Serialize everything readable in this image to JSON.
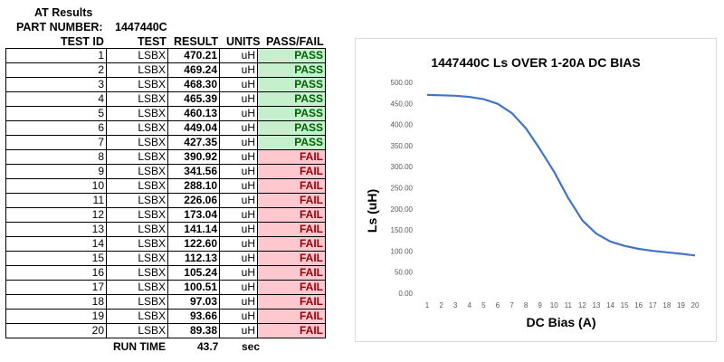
{
  "sheet": {
    "title": "AT Results",
    "part_label": "PART NUMBER:",
    "part_number": "1447440C",
    "headers": {
      "test_id": "TEST ID",
      "test": "TEST",
      "result": "RESULT",
      "units": "UNITS",
      "pass_fail": "PASS/FAIL"
    },
    "rows": [
      {
        "id": "1",
        "test": "LSBX",
        "result": "470.21",
        "units": "uH",
        "status": "PASS"
      },
      {
        "id": "2",
        "test": "LSBX",
        "result": "469.24",
        "units": "uH",
        "status": "PASS"
      },
      {
        "id": "3",
        "test": "LSBX",
        "result": "468.30",
        "units": "uH",
        "status": "PASS"
      },
      {
        "id": "4",
        "test": "LSBX",
        "result": "465.39",
        "units": "uH",
        "status": "PASS"
      },
      {
        "id": "5",
        "test": "LSBX",
        "result": "460.13",
        "units": "uH",
        "status": "PASS"
      },
      {
        "id": "6",
        "test": "LSBX",
        "result": "449.04",
        "units": "uH",
        "status": "PASS"
      },
      {
        "id": "7",
        "test": "LSBX",
        "result": "427.35",
        "units": "uH",
        "status": "PASS"
      },
      {
        "id": "8",
        "test": "LSBX",
        "result": "390.92",
        "units": "uH",
        "status": "FAIL"
      },
      {
        "id": "9",
        "test": "LSBX",
        "result": "341.56",
        "units": "uH",
        "status": "FAIL"
      },
      {
        "id": "10",
        "test": "LSBX",
        "result": "288.10",
        "units": "uH",
        "status": "FAIL"
      },
      {
        "id": "11",
        "test": "LSBX",
        "result": "226.06",
        "units": "uH",
        "status": "FAIL"
      },
      {
        "id": "12",
        "test": "LSBX",
        "result": "173.04",
        "units": "uH",
        "status": "FAIL"
      },
      {
        "id": "13",
        "test": "LSBX",
        "result": "141.14",
        "units": "uH",
        "status": "FAIL"
      },
      {
        "id": "14",
        "test": "LSBX",
        "result": "122.60",
        "units": "uH",
        "status": "FAIL"
      },
      {
        "id": "15",
        "test": "LSBX",
        "result": "112.13",
        "units": "uH",
        "status": "FAIL"
      },
      {
        "id": "16",
        "test": "LSBX",
        "result": "105.24",
        "units": "uH",
        "status": "FAIL"
      },
      {
        "id": "17",
        "test": "LSBX",
        "result": "100.51",
        "units": "uH",
        "status": "FAIL"
      },
      {
        "id": "18",
        "test": "LSBX",
        "result": "97.03",
        "units": "uH",
        "status": "FAIL"
      },
      {
        "id": "19",
        "test": "LSBX",
        "result": "93.66",
        "units": "uH",
        "status": "FAIL"
      },
      {
        "id": "20",
        "test": "LSBX",
        "result": "89.38",
        "units": "uH",
        "status": "FAIL"
      }
    ],
    "run_time_label": "RUN TIME",
    "run_time_value": "43.7",
    "run_time_unit": "sec",
    "colors": {
      "pass_fill": "#c6efce",
      "pass_text": "#006100",
      "fail_fill": "#ffc7ce",
      "fail_text": "#9c0006"
    }
  },
  "chart_data": {
    "type": "line",
    "title": "1447440C Ls OVER 1-20A DC BIAS",
    "xlabel": "DC Bias (A)",
    "ylabel": "Ls (uH)",
    "x": [
      1,
      2,
      3,
      4,
      5,
      6,
      7,
      8,
      9,
      10,
      11,
      12,
      13,
      14,
      15,
      16,
      17,
      18,
      19,
      20
    ],
    "series": [
      {
        "values": [
          470.21,
          469.24,
          468.3,
          465.39,
          460.13,
          449.04,
          427.35,
          390.92,
          341.56,
          288.1,
          226.06,
          173.04,
          141.14,
          122.6,
          112.13,
          105.24,
          100.51,
          97.03,
          93.66,
          89.38
        ],
        "color": "#4472c4"
      }
    ],
    "x_ticks": [
      "1",
      "2",
      "3",
      "4",
      "5",
      "6",
      "7",
      "8",
      "9",
      "10",
      "11",
      "12",
      "13",
      "14",
      "15",
      "16",
      "17",
      "18",
      "19",
      "20"
    ],
    "y_ticks": [
      "0.00",
      "50.00",
      "100.00",
      "150.00",
      "200.00",
      "250.00",
      "300.00",
      "350.00",
      "400.00",
      "450.00",
      "500.00"
    ],
    "ylim": [
      0,
      500
    ],
    "grid": false,
    "legend": "none"
  }
}
